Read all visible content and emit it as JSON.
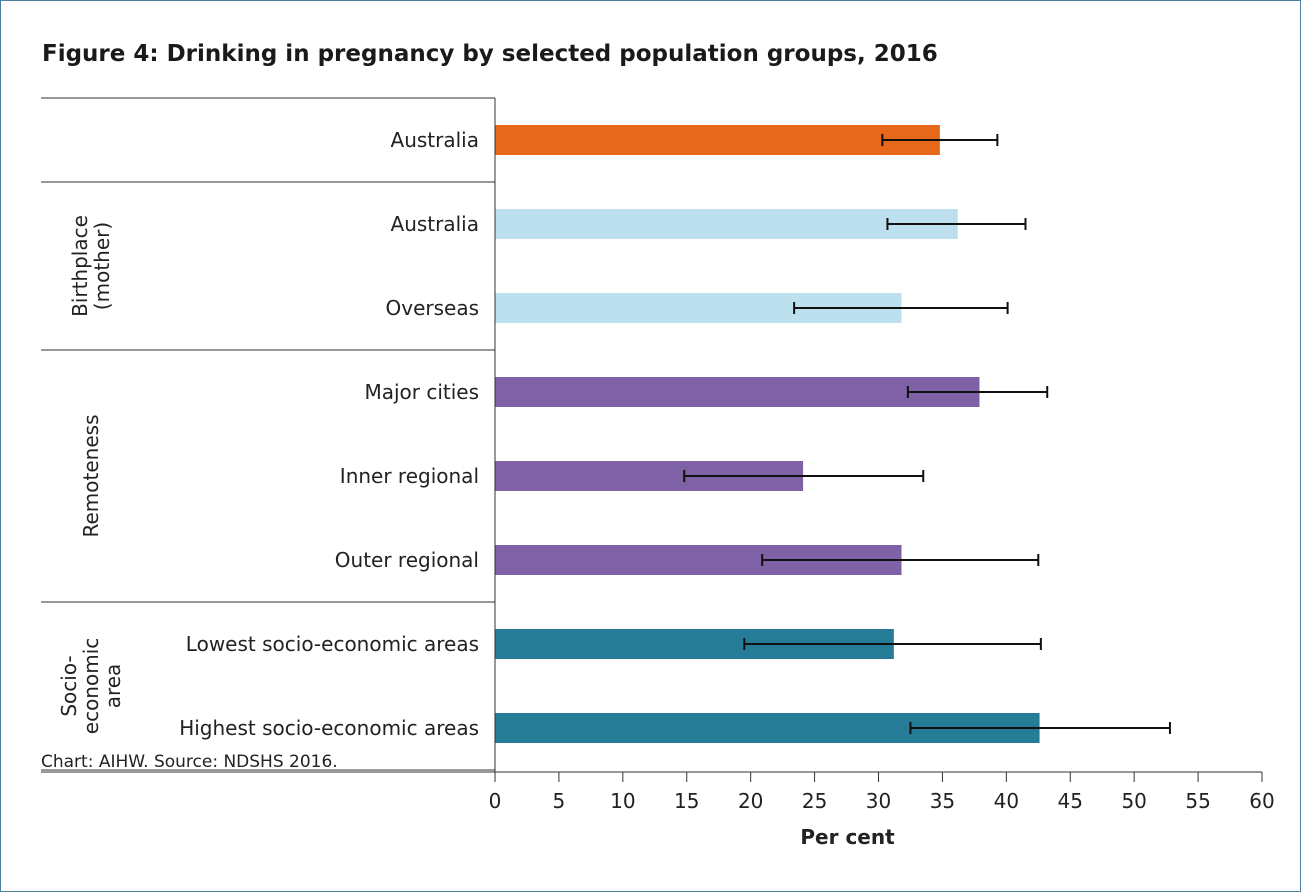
{
  "title": "Figure 4: Drinking in pregnancy by selected population groups, 2016",
  "footnote": "Chart: AIHW. Source: NDSHS 2016.",
  "chart_data": {
    "type": "bar",
    "orientation": "horizontal",
    "title": "Figure 4: Drinking in pregnancy by selected population groups, 2016",
    "xlabel": "Per cent",
    "ylabel": "",
    "xlim": [
      0,
      60
    ],
    "x_ticks": [
      0,
      5,
      10,
      15,
      20,
      25,
      30,
      35,
      40,
      45,
      50,
      55,
      60
    ],
    "grid": false,
    "legend": "none",
    "groups": [
      {
        "label": "",
        "label_lines": [],
        "categories": [
          {
            "label": "Australia",
            "value": 34.8,
            "ci_low": 30.3,
            "ci_high": 39.3,
            "color": "#e8681b"
          }
        ]
      },
      {
        "label": "Birthplace (mother)",
        "label_lines": [
          "Birthplace",
          "(mother)"
        ],
        "categories": [
          {
            "label": "Australia",
            "value": 36.2,
            "ci_low": 30.7,
            "ci_high": 41.5,
            "color": "#bde0ee"
          },
          {
            "label": "Overseas",
            "value": 31.8,
            "ci_low": 23.4,
            "ci_high": 40.1,
            "color": "#bde0ee"
          }
        ]
      },
      {
        "label": "Remoteness",
        "label_lines": [
          "Remoteness"
        ],
        "categories": [
          {
            "label": "Major cities",
            "value": 37.9,
            "ci_low": 32.3,
            "ci_high": 43.2,
            "color": "#7f62a6"
          },
          {
            "label": "Inner regional",
            "value": 24.1,
            "ci_low": 14.8,
            "ci_high": 33.5,
            "color": "#7f62a6"
          },
          {
            "label": "Outer regional",
            "value": 31.8,
            "ci_low": 20.9,
            "ci_high": 42.5,
            "color": "#7f62a6"
          }
        ]
      },
      {
        "label": "Socio-economic area",
        "label_lines": [
          "Socio-",
          "economic",
          "area"
        ],
        "categories": [
          {
            "label": "Lowest socio-economic areas",
            "value": 31.2,
            "ci_low": 19.5,
            "ci_high": 42.7,
            "color": "#267c96"
          },
          {
            "label": "Highest socio-economic areas",
            "value": 42.6,
            "ci_low": 32.5,
            "ci_high": 52.8,
            "color": "#267c96"
          }
        ]
      }
    ]
  }
}
